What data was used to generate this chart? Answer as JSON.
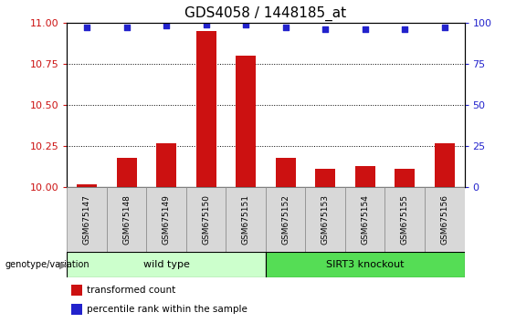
{
  "title": "GDS4058 / 1448185_at",
  "samples": [
    "GSM675147",
    "GSM675148",
    "GSM675149",
    "GSM675150",
    "GSM675151",
    "GSM675152",
    "GSM675153",
    "GSM675154",
    "GSM675155",
    "GSM675156"
  ],
  "transformed_count": [
    10.02,
    10.18,
    10.27,
    10.95,
    10.8,
    10.18,
    10.11,
    10.13,
    10.11,
    10.27
  ],
  "percentile_rank": [
    97,
    97,
    98,
    99,
    99,
    97,
    96,
    96,
    96,
    97
  ],
  "bar_color": "#cc1111",
  "dot_color": "#2222cc",
  "ylim_left": [
    10,
    11
  ],
  "ylim_right": [
    0,
    100
  ],
  "yticks_left": [
    10,
    10.25,
    10.5,
    10.75,
    11
  ],
  "yticks_right": [
    0,
    25,
    50,
    75,
    100
  ],
  "grid_lines": [
    10.25,
    10.5,
    10.75
  ],
  "groups": [
    {
      "label": "wild type",
      "start": 0,
      "end": 5,
      "color": "#ccffcc"
    },
    {
      "label": "SIRT3 knockout",
      "start": 5,
      "end": 10,
      "color": "#55dd55"
    }
  ],
  "group_row_label": "genotype/variation",
  "legend_items": [
    {
      "label": "transformed count",
      "color": "#cc1111"
    },
    {
      "label": "percentile rank within the sample",
      "color": "#2222cc"
    }
  ],
  "title_fontsize": 11,
  "tick_label_color_left": "#cc1111",
  "tick_label_color_right": "#2222cc",
  "bar_width": 0.5,
  "background_color": "#ffffff",
  "sample_box_color": "#d8d8d8",
  "sample_box_edge_color": "#888888"
}
